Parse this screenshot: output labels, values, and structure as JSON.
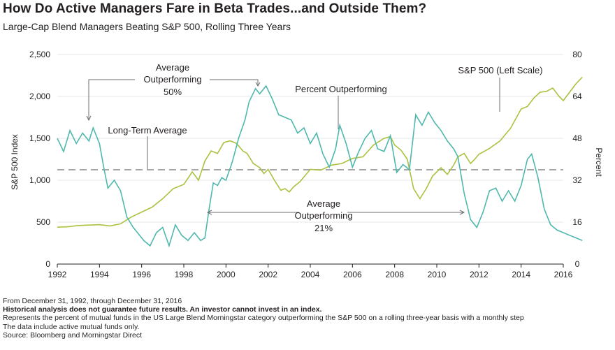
{
  "title": "How Do Active Managers Fare in Beta Trades...and Outside Them?",
  "subtitle": "Large-Cap Blend Managers Beating S&P 500, Rolling Three Years",
  "annotations": {
    "avg_outperforming_line1": "Average",
    "avg_outperforming_line2": "Outperforming",
    "avg_outperforming_line3": "50%",
    "pct_outperforming": "Percent Outperforming",
    "sp500_left_scale": "S&P 500 (Left Scale)",
    "long_term_average": "Long-Term Average",
    "avg_underperforming_line1": "Average",
    "avg_underperforming_line2": "Outperforming",
    "avg_underperforming_line3": "21%"
  },
  "footer": {
    "line1": "From December 31, 1992, through December 31, 2016",
    "line2": "Historical analysis does not guarantee future results. An investor cannot invest in an index.",
    "line3": "Represents the percent of mutual funds in the US Large Blend Morningstar category outperforming the S&P 500 on a rolling three-year basis with a monthly step",
    "line4": "The data include active mutual funds only.",
    "line5": "Source:  Bloomberg and Morningstar Direct"
  },
  "colors": {
    "sp500": "#a9c23f",
    "percent": "#4fb8ad",
    "average": "#8c8c8c",
    "text": "#231f20"
  },
  "chart_data": {
    "type": "line",
    "xlabel": "",
    "ylabel": "S&P 500 Index",
    "y2label": "Percent",
    "xlim": [
      1992,
      2016
    ],
    "ylim": [
      0,
      2500
    ],
    "y2lim": [
      0,
      80
    ],
    "x_ticks": [
      "1992",
      "1994",
      "1996",
      "1998",
      "2000",
      "2002",
      "2004",
      "2006",
      "2008",
      "2010",
      "2012",
      "2014",
      "2016"
    ],
    "y_ticks": [
      "0",
      "500",
      "1,000",
      "1,500",
      "2,000",
      "2,500"
    ],
    "y2_ticks": [
      "0",
      "16",
      "32",
      "48",
      "64",
      "80"
    ],
    "long_term_average_pct": 36,
    "series": [
      {
        "name": "S&P 500 (Left Scale)",
        "axis": "left",
        "x": [
          1992.0,
          1992.5,
          1993.0,
          1993.5,
          1994.0,
          1994.5,
          1995.0,
          1995.5,
          1996.0,
          1996.5,
          1997.0,
          1997.5,
          1998.0,
          1998.4,
          1998.7,
          1999.0,
          1999.3,
          1999.6,
          1999.9,
          2000.2,
          2000.5,
          2000.8,
          2001.0,
          2001.3,
          2001.6,
          2001.8,
          2002.0,
          2002.3,
          2002.6,
          2002.8,
          2003.0,
          2003.2,
          2003.5,
          2004.0,
          2004.5,
          2005.0,
          2005.5,
          2006.0,
          2006.5,
          2007.0,
          2007.5,
          2007.8,
          2008.0,
          2008.3,
          2008.6,
          2008.9,
          2009.2,
          2009.5,
          2009.8,
          2010.2,
          2010.5,
          2010.8,
          2011.0,
          2011.3,
          2011.6,
          2011.8,
          2012.0,
          2012.5,
          2013.0,
          2013.5,
          2014.0,
          2014.3,
          2014.6,
          2014.9,
          2015.2,
          2015.5,
          2015.8,
          2016.0,
          2016.3,
          2016.6,
          2016.9
        ],
        "values": [
          440,
          445,
          460,
          465,
          470,
          455,
          480,
          560,
          620,
          680,
          780,
          900,
          950,
          1100,
          1000,
          1230,
          1350,
          1320,
          1450,
          1470,
          1440,
          1350,
          1320,
          1200,
          1150,
          1080,
          1130,
          1000,
          880,
          900,
          860,
          920,
          980,
          1130,
          1120,
          1180,
          1200,
          1260,
          1280,
          1420,
          1500,
          1520,
          1420,
          1360,
          1250,
          900,
          780,
          900,
          1050,
          1150,
          1070,
          1180,
          1280,
          1320,
          1200,
          1250,
          1310,
          1380,
          1470,
          1620,
          1850,
          1880,
          1980,
          2050,
          2060,
          2100,
          2000,
          1950,
          2050,
          2150,
          2230
        ]
      },
      {
        "name": "Percent Outperforming",
        "axis": "right",
        "x": [
          1992.0,
          1992.3,
          1992.6,
          1992.9,
          1993.2,
          1993.5,
          1993.7,
          1994.0,
          1994.2,
          1994.4,
          1994.7,
          1995.0,
          1995.3,
          1995.6,
          1995.9,
          1996.1,
          1996.4,
          1996.7,
          1997.0,
          1997.3,
          1997.6,
          1997.9,
          1998.2,
          1998.5,
          1998.8,
          1999.0,
          1999.2,
          1999.4,
          1999.6,
          1999.8,
          2000.0,
          2000.3,
          2000.6,
          2000.9,
          2001.1,
          2001.4,
          2001.6,
          2001.9,
          2002.2,
          2002.5,
          2002.8,
          2003.1,
          2003.4,
          2003.7,
          2004.0,
          2004.3,
          2004.6,
          2004.9,
          2005.2,
          2005.4,
          2005.7,
          2006.0,
          2006.3,
          2006.6,
          2006.9,
          2007.2,
          2007.5,
          2007.8,
          2008.1,
          2008.4,
          2008.7,
          2009.0,
          2009.3,
          2009.6,
          2009.9,
          2010.2,
          2010.5,
          2010.8,
          2011.0,
          2011.3,
          2011.6,
          2011.9,
          2012.2,
          2012.5,
          2012.8,
          2013.1,
          2013.4,
          2013.7,
          2014.0,
          2014.3,
          2014.5,
          2014.8,
          2015.1,
          2015.4,
          2015.7,
          2016.0,
          2016.3,
          2016.6,
          2016.9
        ],
        "values": [
          48,
          43,
          51,
          46,
          50,
          47,
          52,
          46,
          37,
          29,
          32,
          28,
          18,
          14,
          11,
          9,
          7,
          12,
          14,
          7,
          15,
          11,
          9,
          12,
          9,
          10,
          21,
          31,
          30,
          33,
          32,
          39,
          48,
          55,
          62,
          67,
          65,
          68,
          63,
          57,
          56,
          55,
          50,
          52,
          46,
          50,
          42,
          37,
          44,
          53,
          46,
          37,
          43,
          48,
          51,
          44,
          43,
          49,
          35,
          38,
          36,
          57,
          53,
          58,
          54,
          51,
          47,
          44,
          41,
          27,
          17,
          14,
          20,
          28,
          29,
          24,
          28,
          24,
          30,
          40,
          42,
          33,
          21,
          15,
          13,
          12,
          11,
          10,
          9
        ]
      }
    ]
  }
}
